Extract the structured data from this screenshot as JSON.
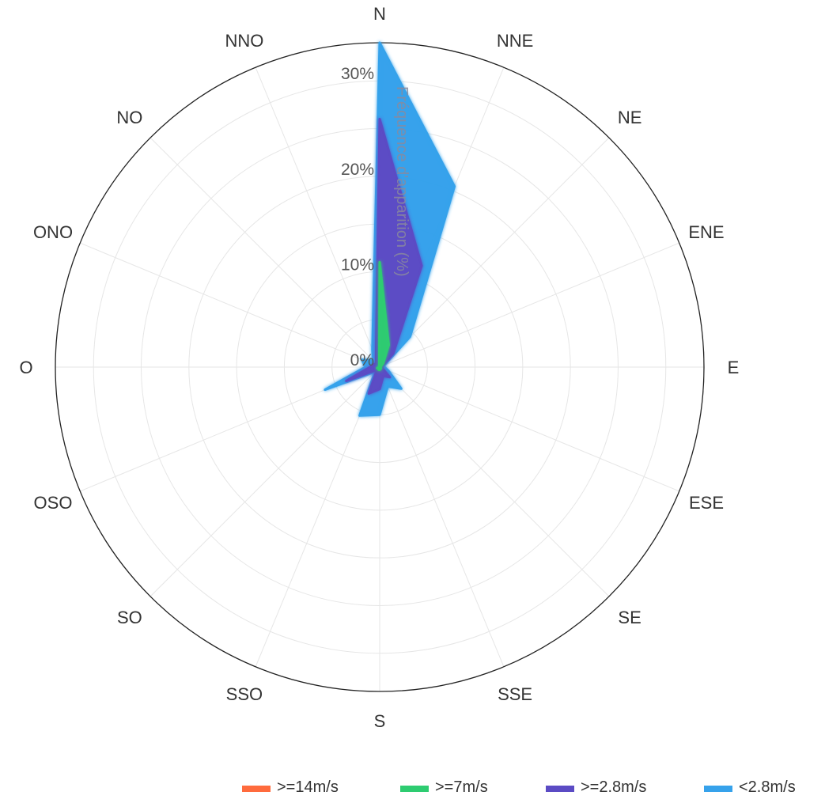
{
  "chart_data": {
    "type": "radar",
    "directions": [
      "N",
      "NNE",
      "NE",
      "ENE",
      "E",
      "ESE",
      "SE",
      "SSE",
      "S",
      "SSO",
      "SO",
      "OSO",
      "O",
      "ONO",
      "NO",
      "NNO"
    ],
    "radial_axis": {
      "title": "Fréquence d'apparition (%)",
      "ticks": [
        "0%",
        "10%",
        "20%",
        "30%"
      ],
      "tick_values": [
        0,
        10,
        20,
        30
      ],
      "max": 34,
      "grid": true
    },
    "series": [
      {
        "name": "<2.8m/s",
        "color": "#36a2eb",
        "values": [
          34,
          20.5,
          4.5,
          0.5,
          0.5,
          1,
          3.2,
          2.2,
          5,
          5.5,
          0.7,
          6.2,
          1.5,
          2,
          1,
          2
        ]
      },
      {
        "name": ">=2.8m/s",
        "color": "#5b4bc4",
        "values": [
          26,
          11.5,
          2,
          0.3,
          0.3,
          0.3,
          1.5,
          1,
          2.3,
          3,
          0.4,
          3.8,
          1,
          0.7,
          0.5,
          1
        ]
      },
      {
        "name": ">=7m/s",
        "color": "#2ecc71",
        "values": [
          11,
          2.5,
          0.5,
          0.1,
          0.1,
          0.1,
          0.2,
          0.2,
          0.3,
          0.3,
          0.1,
          0.3,
          0.1,
          0.1,
          0.1,
          0.1
        ]
      },
      {
        "name": ">=14m/s",
        "color": "#ff6b3d",
        "values": [
          0,
          0,
          0,
          0,
          0,
          0,
          0,
          0,
          0,
          0,
          0,
          0,
          0,
          0,
          0,
          0
        ]
      }
    ],
    "legend": {
      "placement": "bottom-right",
      "order": [
        ">=14m/s",
        ">=7m/s",
        ">=2.8m/s",
        "<2.8m/s"
      ]
    }
  }
}
